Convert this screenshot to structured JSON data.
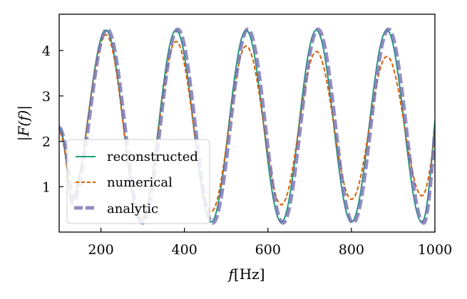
{
  "chart_data": {
    "type": "line",
    "title": "",
    "xlabel": "f[Hz]",
    "xlabel_italic": "f",
    "xlabel_unit": "[Hz]",
    "ylabel": "|F(f)|",
    "xlim": [
      100,
      1000
    ],
    "ylim": [
      0,
      4.8
    ],
    "x_ticks": [
      200,
      400,
      600,
      800,
      1000
    ],
    "y_ticks": [
      1,
      2,
      3,
      4
    ],
    "grid": false,
    "legend_position": "lower-left",
    "series": [
      {
        "name": "reconstructed",
        "style": "solid",
        "color": "#1b9e77",
        "peaks": [
          [
            212,
            4.45
          ],
          [
            380,
            4.45
          ],
          [
            548,
            4.45
          ],
          [
            716,
            4.45
          ],
          [
            885,
            4.45
          ]
        ],
        "troughs": [
          [
            127,
            0.65
          ],
          [
            296,
            0.22
          ],
          [
            464,
            0.22
          ],
          [
            632,
            0.22
          ],
          [
            800,
            0.22
          ],
          [
            969,
            0.22
          ]
        ],
        "start": [
          100,
          2.3
        ],
        "end": [
          1000,
          2.45
        ]
      },
      {
        "name": "numerical",
        "style": "dashed",
        "color": "#d95f02",
        "peaks": [
          [
            212,
            4.35
          ],
          [
            380,
            4.2
          ],
          [
            548,
            4.1
          ],
          [
            716,
            3.98
          ],
          [
            885,
            3.87
          ]
        ],
        "troughs": [
          [
            127,
            0.72
          ],
          [
            296,
            0.3
          ],
          [
            464,
            0.45
          ],
          [
            632,
            0.6
          ],
          [
            800,
            0.72
          ],
          [
            969,
            0.8
          ]
        ],
        "start": [
          100,
          2.2
        ],
        "end": [
          1000,
          2.15
        ]
      },
      {
        "name": "analytic",
        "style": "dashed",
        "color": "#7570b3",
        "peaks": [
          [
            215,
            4.47
          ],
          [
            384,
            4.47
          ],
          [
            552,
            4.47
          ],
          [
            720,
            4.47
          ],
          [
            889,
            4.47
          ]
        ],
        "troughs": [
          [
            131,
            0.65
          ],
          [
            300,
            0.2
          ],
          [
            468,
            0.2
          ],
          [
            636,
            0.2
          ],
          [
            804,
            0.2
          ],
          [
            973,
            0.2
          ]
        ],
        "start": [
          100,
          2.3
        ],
        "end": [
          1000,
          2.25
        ]
      }
    ]
  }
}
